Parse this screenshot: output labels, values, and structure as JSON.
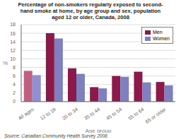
{
  "chart_data": {
    "type": "bar",
    "title": "Percentage of non-smokers regularly exposed to second-\nhand smoke at home, by age group and sex, population\naged 12 or older, Canada, 2008",
    "categories": [
      "All ages",
      "12 to 19",
      "20 to 34",
      "35 to 44",
      "45 to 54",
      "55 to 64",
      "65 or older"
    ],
    "series": [
      {
        "name": "Men",
        "color": "#8B1A4A",
        "colors": [
          "#C06080",
          "#8B1A4A",
          "#8B1A4A",
          "#8B1A4A",
          "#8B1A4A",
          "#8B1A4A",
          "#8B1A4A"
        ],
        "values": [
          7.2,
          16.0,
          7.8,
          3.4,
          6.0,
          7.0,
          4.6
        ]
      },
      {
        "name": "Women",
        "color": "#8080C0",
        "colors": [
          "#9090D0",
          "#8080C0",
          "#8080C0",
          "#8080C0",
          "#8080C0",
          "#8080C0",
          "#8080C0"
        ],
        "values": [
          6.2,
          14.8,
          6.5,
          3.1,
          5.8,
          4.5,
          3.8
        ]
      }
    ],
    "xlabel": "Age group",
    "ylabel": "%",
    "ylim": [
      0,
      18
    ],
    "yticks": [
      0,
      2,
      4,
      6,
      8,
      10,
      12,
      14,
      16,
      18
    ],
    "grid": true,
    "legend": "upper right",
    "annotations": [
      "Source: Canadian Community Health Survey 2008."
    ]
  }
}
